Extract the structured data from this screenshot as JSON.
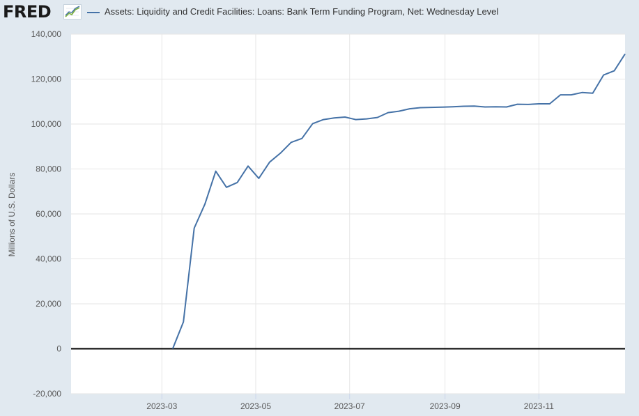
{
  "header": {
    "logo_text": "FRED",
    "legend_label": "Assets: Liquidity and Credit Facilities: Loans: Bank Term Funding Program, Net: Wednesday Level",
    "series_color": "#4572a7"
  },
  "chart_data": {
    "type": "line",
    "title": "",
    "xlabel": "",
    "ylabel": "Millions of U.S. Dollars",
    "ylim": [
      -20000,
      140000
    ],
    "xlim": [
      "2023-01-01",
      "2023-12-27"
    ],
    "grid": true,
    "legend": "top",
    "y_ticks": [
      -20000,
      0,
      20000,
      40000,
      60000,
      80000,
      100000,
      120000,
      140000
    ],
    "y_tick_labels": [
      "-20,000",
      "0",
      "20,000",
      "40,000",
      "60,000",
      "80,000",
      "100,000",
      "120,000",
      "140,000"
    ],
    "x_ticks": [
      "2023-03-01",
      "2023-05-01",
      "2023-07-01",
      "2023-09-01",
      "2023-11-01"
    ],
    "x_tick_labels": [
      "2023-03",
      "2023-05",
      "2023-07",
      "2023-09",
      "2023-11"
    ],
    "zero_line": 0,
    "series": [
      {
        "color": "#4572a7",
        "points": [
          [
            "2023-03-08",
            0
          ],
          [
            "2023-03-15",
            11943
          ],
          [
            "2023-03-22",
            53669
          ],
          [
            "2023-03-29",
            64403
          ],
          [
            "2023-04-05",
            79020
          ],
          [
            "2023-04-12",
            71838
          ],
          [
            "2023-04-19",
            73998
          ],
          [
            "2023-04-26",
            81303
          ],
          [
            "2023-05-03",
            75818
          ],
          [
            "2023-05-10",
            83052
          ],
          [
            "2023-05-17",
            87011
          ],
          [
            "2023-05-24",
            91841
          ],
          [
            "2023-05-31",
            93587
          ],
          [
            "2023-06-07",
            100189
          ],
          [
            "2023-06-14",
            102000
          ],
          [
            "2023-06-21",
            102700
          ],
          [
            "2023-06-28",
            103100
          ],
          [
            "2023-07-05",
            102000
          ],
          [
            "2023-07-12",
            102300
          ],
          [
            "2023-07-19",
            102900
          ],
          [
            "2023-07-26",
            105100
          ],
          [
            "2023-08-02",
            105700
          ],
          [
            "2023-08-09",
            106800
          ],
          [
            "2023-08-16",
            107300
          ],
          [
            "2023-08-23",
            107400
          ],
          [
            "2023-08-30",
            107500
          ],
          [
            "2023-09-06",
            107700
          ],
          [
            "2023-09-13",
            107900
          ],
          [
            "2023-09-20",
            108000
          ],
          [
            "2023-09-27",
            107600
          ],
          [
            "2023-10-04",
            107700
          ],
          [
            "2023-10-11",
            107600
          ],
          [
            "2023-10-18",
            108800
          ],
          [
            "2023-10-25",
            108700
          ],
          [
            "2023-11-01",
            109000
          ],
          [
            "2023-11-08",
            109000
          ],
          [
            "2023-11-15",
            113000
          ],
          [
            "2023-11-22",
            113000
          ],
          [
            "2023-11-29",
            114000
          ],
          [
            "2023-12-06",
            113700
          ],
          [
            "2023-12-13",
            121800
          ],
          [
            "2023-12-20",
            123700
          ],
          [
            "2023-12-27",
            131200
          ]
        ]
      }
    ]
  }
}
